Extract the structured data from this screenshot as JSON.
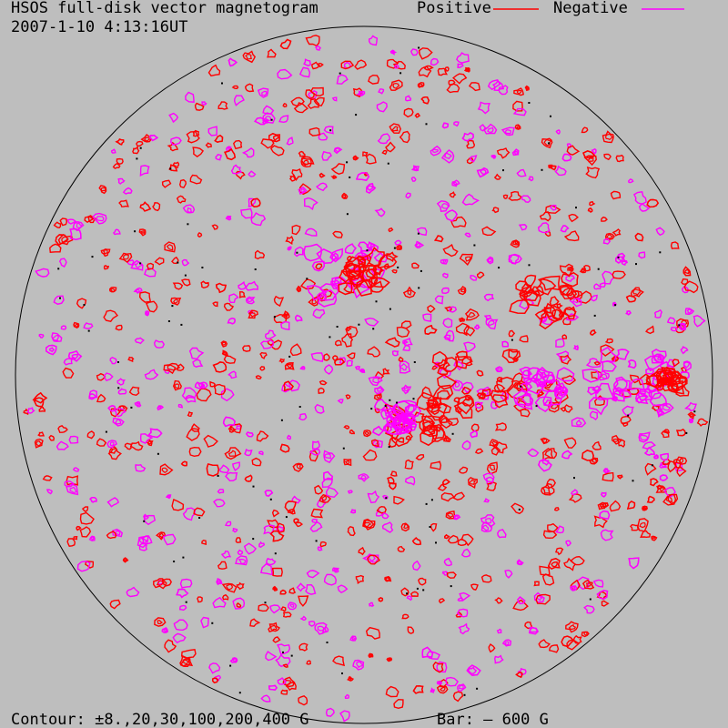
{
  "header": {
    "title": "HSOS full-disk vector magnetogram",
    "timestamp": "2007-1-10 4:13:16UT"
  },
  "legend": {
    "positive": "Positive",
    "negative": "Negative"
  },
  "footer": {
    "contour": "Contour: ±8.,20,30,100,200,400 G",
    "bar": "Bar: –   600 G"
  }
}
